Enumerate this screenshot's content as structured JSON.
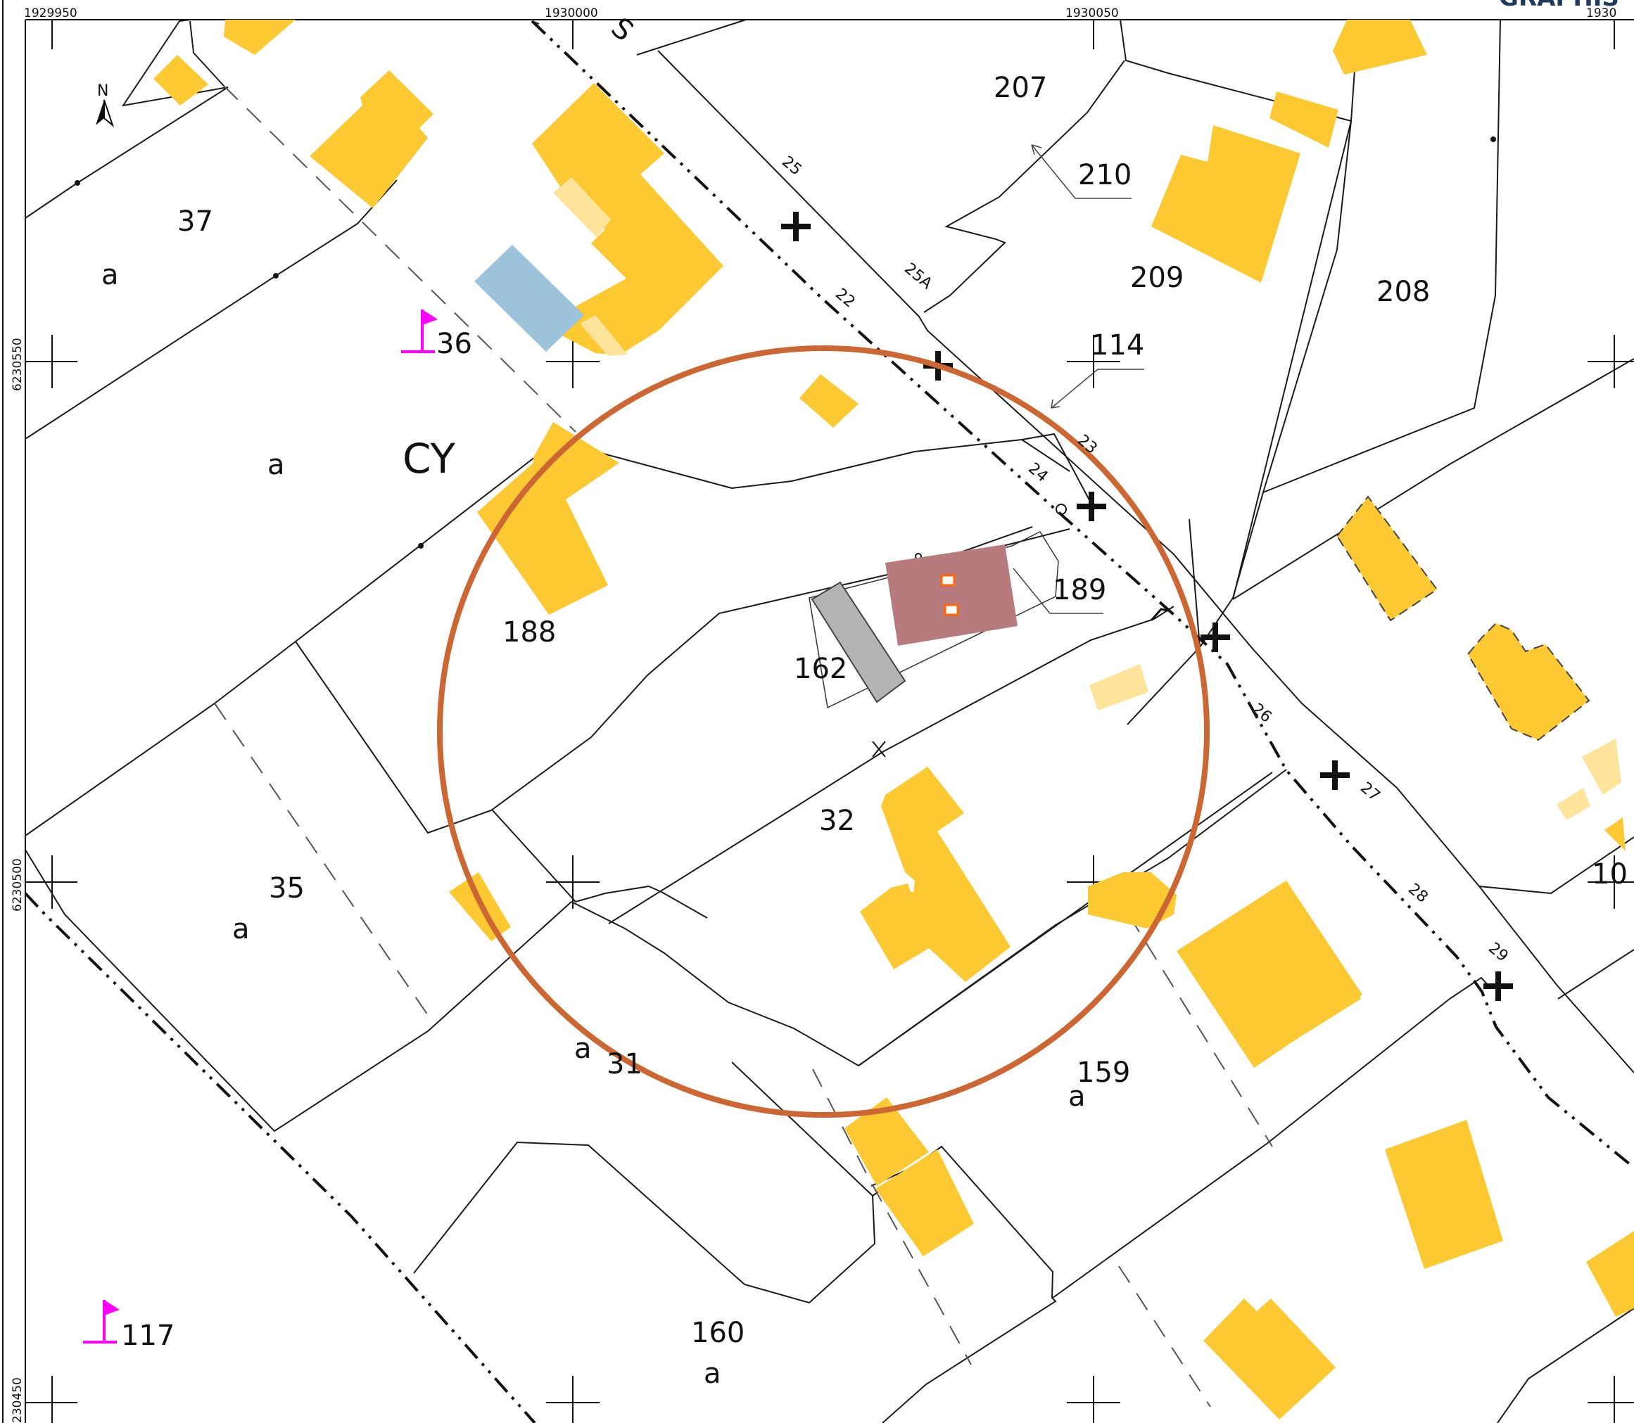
{
  "map": {
    "header_brand": "GRAPHIS",
    "coords": {
      "top": [
        "1929950",
        "1930000",
        "1930050",
        "1930"
      ],
      "left": [
        "6230550",
        "6230500",
        "230450"
      ]
    },
    "section_label": "CY",
    "parcels": [
      {
        "id": "p37",
        "num": "37"
      },
      {
        "id": "p36",
        "num": "36"
      },
      {
        "id": "p207",
        "num": "207"
      },
      {
        "id": "p210",
        "num": "210"
      },
      {
        "id": "p209",
        "num": "209"
      },
      {
        "id": "p208",
        "num": "208"
      },
      {
        "id": "p114",
        "num": "114"
      },
      {
        "id": "p188",
        "num": "188"
      },
      {
        "id": "p189",
        "num": "189"
      },
      {
        "id": "p162",
        "num": "162"
      },
      {
        "id": "p32",
        "num": "32"
      },
      {
        "id": "p35",
        "num": "35"
      },
      {
        "id": "p31",
        "num": "31"
      },
      {
        "id": "p159",
        "num": "159"
      },
      {
        "id": "p160",
        "num": "160"
      },
      {
        "id": "p117",
        "num": "117"
      },
      {
        "id": "p10",
        "num": "10"
      }
    ],
    "subparcel_letter": "a",
    "street_numbers": [
      "25",
      "25A",
      "22",
      "23",
      "24",
      "26",
      "27",
      "28",
      "29"
    ],
    "road_letter": "S",
    "north_label": "N",
    "colors": {
      "building": "#fcc933",
      "building_light": "#fde49a",
      "circle": "#cc6633",
      "target_roof": "#b87b7d",
      "annex": "#b3b3b3",
      "water_tank": "#9cc3d9",
      "flag": "#ff00ff",
      "window_marker": "#ff6600"
    }
  }
}
